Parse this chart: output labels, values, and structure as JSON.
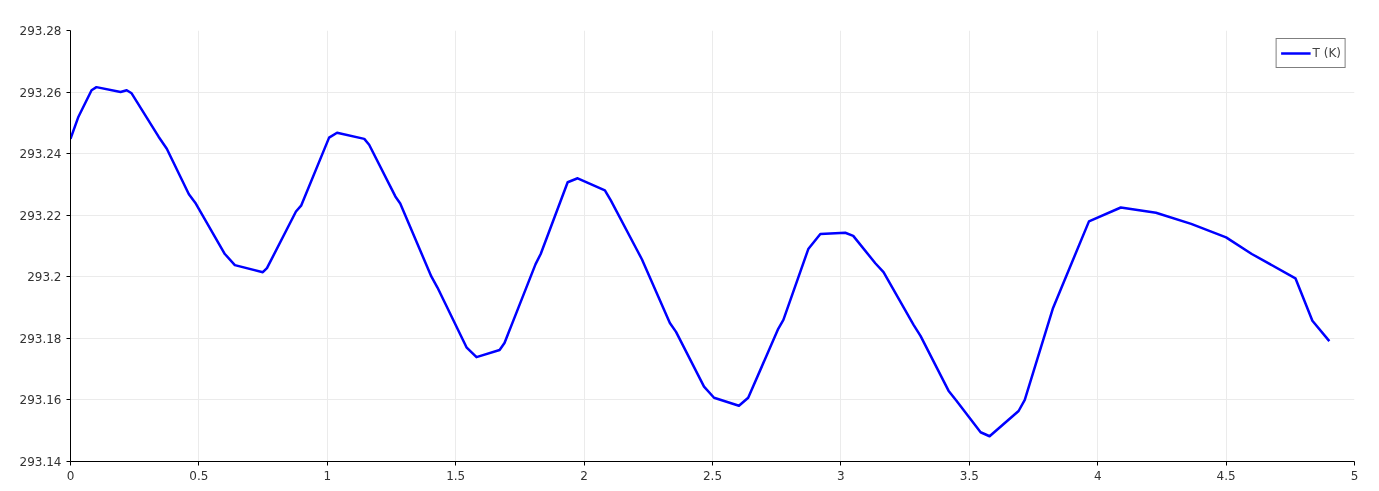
{
  "chart_data": {
    "type": "line",
    "x": [
      0,
      0.031,
      0.082,
      0.101,
      0.195,
      0.219,
      0.238,
      0.343,
      0.375,
      0.461,
      0.488,
      0.601,
      0.64,
      0.749,
      0.765,
      0.878,
      0.898,
      1.007,
      1.038,
      1.144,
      1.163,
      1.265,
      1.284,
      1.405,
      1.429,
      1.542,
      1.581,
      1.671,
      1.69,
      1.811,
      1.831,
      1.936,
      1.975,
      2.081,
      2.104,
      2.206,
      2.225,
      2.334,
      2.358,
      2.467,
      2.506,
      2.603,
      2.639,
      2.756,
      2.776,
      2.873,
      2.92,
      3.017,
      3.048,
      3.134,
      3.166,
      3.283,
      3.31,
      3.419,
      3.45,
      3.544,
      3.579,
      3.692,
      3.716,
      3.825,
      3.856,
      3.966,
      4.09,
      4.227,
      4.364,
      4.5,
      4.6,
      4.77,
      4.836,
      4.902
    ],
    "series": [
      {
        "name": "T (K)",
        "color": "#0000ff",
        "values": [
          293.2448,
          293.252,
          293.2606,
          293.2616,
          293.26,
          293.2606,
          293.2596,
          293.2455,
          293.2416,
          293.2268,
          293.2238,
          293.2074,
          293.2038,
          293.2015,
          293.2028,
          293.2212,
          293.2231,
          293.2452,
          293.2468,
          293.2448,
          293.2429,
          293.2261,
          293.2238,
          293.2001,
          293.1965,
          293.1771,
          293.1739,
          293.1762,
          293.1785,
          293.2041,
          293.2074,
          293.2307,
          293.232,
          293.2281,
          293.2248,
          293.2087,
          293.2057,
          293.185,
          293.1821,
          293.1643,
          293.1607,
          293.1581,
          293.1607,
          293.1831,
          293.186,
          293.209,
          293.2139,
          293.2143,
          293.2133,
          293.2044,
          293.2015,
          293.1844,
          293.1808,
          293.163,
          293.1597,
          293.1495,
          293.1482,
          293.1564,
          293.16,
          293.1896,
          293.1959,
          293.218,
          293.2225,
          293.2208,
          293.2172,
          293.2128,
          293.2074,
          293.1995,
          293.1857,
          293.1791
        ]
      }
    ],
    "xlim": [
      0,
      5
    ],
    "xticks": [
      0,
      0.5,
      1,
      1.5,
      2,
      2.5,
      3,
      3.5,
      4,
      4.5,
      5
    ],
    "ylim": [
      293.14,
      293.28
    ],
    "yticks": [
      293.14,
      293.16,
      293.18,
      293.2,
      293.22,
      293.24,
      293.26,
      293.28
    ],
    "grid": true,
    "legend": "top right",
    "line_style": "solid",
    "marker": "none"
  }
}
